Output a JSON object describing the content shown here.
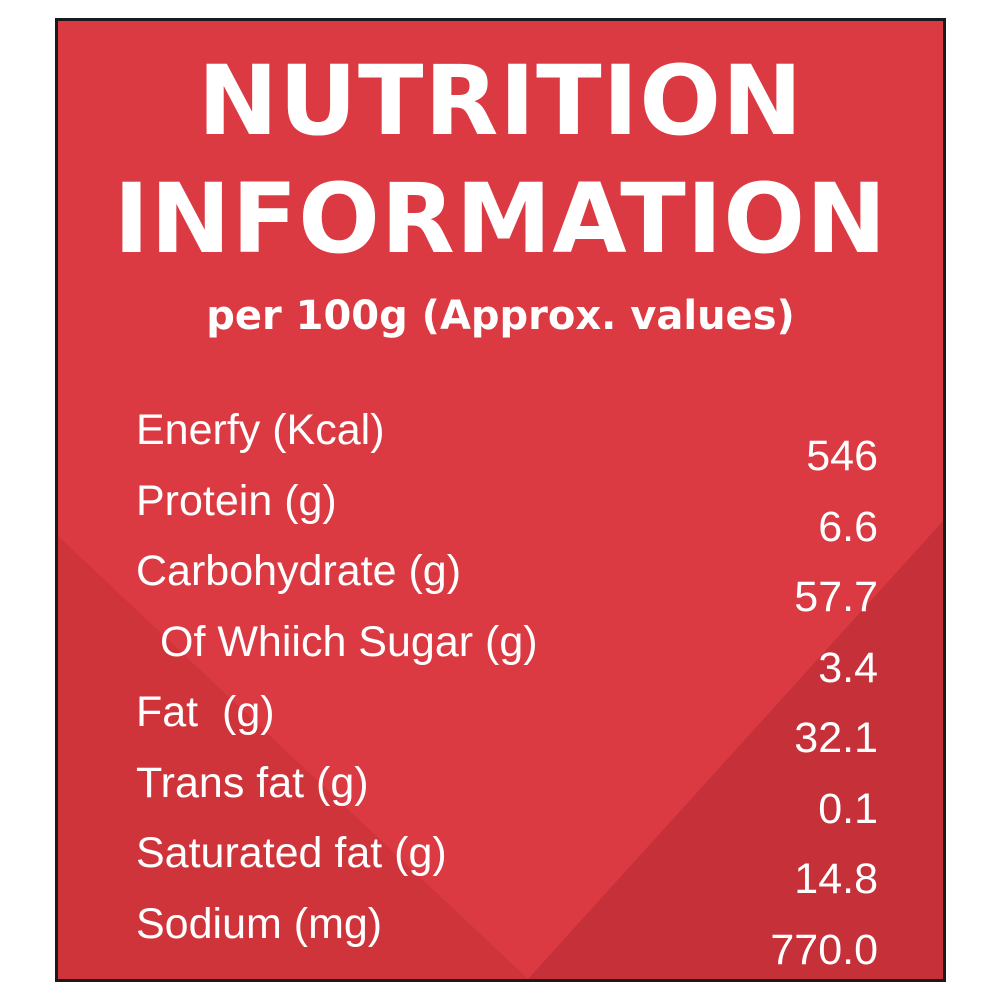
{
  "panel": {
    "background_color": "#db3a42",
    "title_line_1": "NUTRITION",
    "title_line_2": "INFORMATION",
    "subtitle": "per 100g (Approx. values)"
  },
  "rows": [
    {
      "label": "Enerfy (Kcal)",
      "value": "546"
    },
    {
      "label": "Protein (g)",
      "value": "6.6"
    },
    {
      "label": "Carbohydrate (g)",
      "value": "57.7"
    },
    {
      "label": "Of Whiich Sugar (g)",
      "value": "3.4"
    },
    {
      "label": "Fat  (g)",
      "value": "32.1"
    },
    {
      "label": "Trans fat (g)",
      "value": "0.1"
    },
    {
      "label": "Saturated fat (g)",
      "value": "14.8"
    },
    {
      "label": "Sodium (mg)",
      "value": "770.0"
    }
  ]
}
